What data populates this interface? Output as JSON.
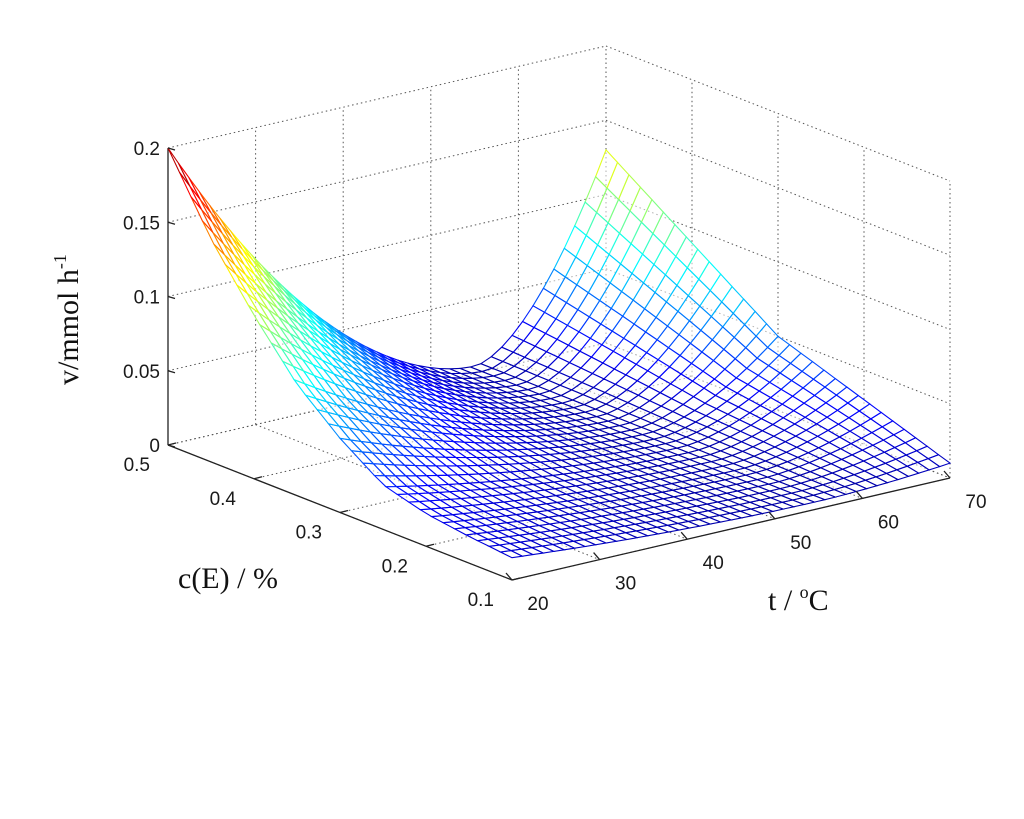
{
  "chart_data": {
    "type": "surface",
    "xlabel": "t / ",
    "xlabel_sup": "o",
    "xlabel_end": "C",
    "ylabel": "c(E) / %",
    "zlabel": "v/mmol h",
    "zlabel_sup": "-1",
    "xlim": [
      20,
      70
    ],
    "ylim": [
      0.1,
      0.5
    ],
    "zlim": [
      0,
      0.2
    ],
    "x_ticks": [
      "20",
      "30",
      "40",
      "50",
      "60",
      "70"
    ],
    "y_ticks": [
      "0.1",
      "0.2",
      "0.3",
      "0.4",
      "0.5"
    ],
    "z_ticks": [
      "0",
      "0.05",
      "0.1",
      "0.15",
      "0.2"
    ],
    "grid": true,
    "colormap": [
      "#00008f",
      "#0000ff",
      "#0080ff",
      "#00ffff",
      "#80ff80",
      "#ffff00",
      "#ff8000",
      "#ff0000",
      "#800000"
    ],
    "surface_values": {
      "c_at_t20": [
        0.2,
        0.15,
        0.11,
        0.075,
        0.05,
        0.03,
        0.022,
        0.018,
        0.015
      ],
      "c_values": [
        0.5,
        0.45,
        0.4,
        0.35,
        0.3,
        0.25,
        0.2,
        0.15,
        0.1
      ],
      "v_at_t70": [
        0.13,
        0.11,
        0.09,
        0.07,
        0.05,
        0.04,
        0.03,
        0.02,
        0.01
      ],
      "v_min_t": 55,
      "v_min": 0.005
    }
  }
}
